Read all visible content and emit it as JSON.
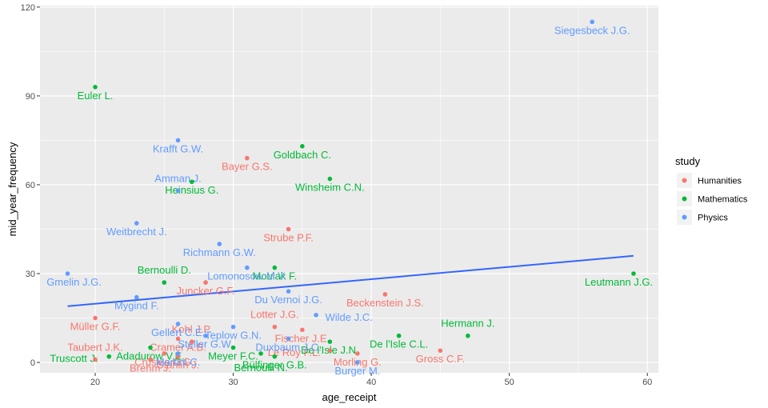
{
  "chart_data": {
    "type": "scatter",
    "xlabel": "age_receipt",
    "ylabel": "mid_year_frequency",
    "xlim": [
      16.0,
      60.8
    ],
    "ylim": [
      -3.5,
      120.5
    ],
    "x_ticks": [
      20,
      30,
      40,
      50,
      60
    ],
    "y_ticks": [
      0,
      30,
      60,
      90,
      120
    ],
    "grid": true,
    "legend": {
      "title": "study",
      "placement": "right",
      "entries": [
        {
          "name": "Humanities",
          "color": "#F8766D"
        },
        {
          "name": "Mathematics",
          "color": "#00BA38"
        },
        {
          "name": "Physics",
          "color": "#619CFF"
        }
      ]
    },
    "trend_line": {
      "color": "#3366FF",
      "from": [
        18,
        19
      ],
      "to": [
        59,
        36
      ]
    },
    "series": [
      {
        "name": "Humanities",
        "color": "#F8766D",
        "points": [
          {
            "x": 31,
            "y": 69,
            "label": "Bayer G.S."
          },
          {
            "x": 34,
            "y": 45,
            "label": "Strube P.F."
          },
          {
            "x": 28,
            "y": 27,
            "label": "Juncker G.F."
          },
          {
            "x": 41,
            "y": 23,
            "label": "Beckenstein J.S."
          },
          {
            "x": 20,
            "y": 15,
            "label": "Müller G.F."
          },
          {
            "x": 35,
            "y": 11,
            "label": "Fischer J.E."
          },
          {
            "x": 33,
            "y": 12,
            "label": "Lotter J.G."
          },
          {
            "x": 26,
            "y": 8,
            "label": "Cramer A.B."
          },
          {
            "x": 27,
            "y": 7,
            "label": "Kohl J.P."
          },
          {
            "x": 25,
            "y": 3,
            "label": "Crusius C.G."
          },
          {
            "x": 39,
            "y": 3,
            "label": "Morling G."
          },
          {
            "x": 45,
            "y": 4,
            "label": "Gross C.F."
          },
          {
            "x": 26,
            "y": 2,
            "label": "Stählin J."
          },
          {
            "x": 24,
            "y": 1,
            "label": "Brehm J."
          },
          {
            "x": 37,
            "y": 4,
            "label": "Le Roy P.L."
          },
          {
            "x": 20,
            "y": 1,
            "label": "Taubert J.K."
          }
        ]
      },
      {
        "name": "Mathematics",
        "color": "#00BA38",
        "points": [
          {
            "x": 20,
            "y": 93,
            "label": "Euler L."
          },
          {
            "x": 35,
            "y": 73,
            "label": "Goldbach C."
          },
          {
            "x": 37,
            "y": 62,
            "label": "Winsheim C.N."
          },
          {
            "x": 27,
            "y": 61,
            "label": "Heinsius G."
          },
          {
            "x": 33,
            "y": 32,
            "label": "Moulak F."
          },
          {
            "x": 25,
            "y": 27,
            "label": "Bernoulli D."
          },
          {
            "x": 59,
            "y": 30,
            "label": "Leutmann J.G."
          },
          {
            "x": 42,
            "y": 9,
            "label": "De l'Isle C.L."
          },
          {
            "x": 37,
            "y": 7,
            "label": "De l'Isle J.N."
          },
          {
            "x": 47,
            "y": 9,
            "label": "Hermann J."
          },
          {
            "x": 24,
            "y": 5,
            "label": "Adadurow V.E."
          },
          {
            "x": 30,
            "y": 5,
            "label": "Meyer F.C."
          },
          {
            "x": 32,
            "y": 3,
            "label": "Bernoulli N."
          },
          {
            "x": 33,
            "y": 2,
            "label": "Bülfinger G.B."
          },
          {
            "x": 21,
            "y": 2,
            "label": "Truscott J."
          }
        ]
      },
      {
        "name": "Physics",
        "color": "#619CFF",
        "points": [
          {
            "x": 56,
            "y": 115,
            "label": "Siegesbeck J.G."
          },
          {
            "x": 26,
            "y": 75,
            "label": "Krafft G.W."
          },
          {
            "x": 26,
            "y": 58,
            "label": "Amman J."
          },
          {
            "x": 23,
            "y": 47,
            "label": "Weitbrecht J."
          },
          {
            "x": 29,
            "y": 40,
            "label": "Richmann G.W."
          },
          {
            "x": 31,
            "y": 32,
            "label": "Lomonosow M.V."
          },
          {
            "x": 18,
            "y": 30,
            "label": "Gmelin J.G."
          },
          {
            "x": 34,
            "y": 24,
            "label": "Du Vernoi J.G."
          },
          {
            "x": 23,
            "y": 22,
            "label": "Mygind F."
          },
          {
            "x": 36,
            "y": 16,
            "label": "Wilde J.C."
          },
          {
            "x": 26,
            "y": 13,
            "label": "Gellert C.E."
          },
          {
            "x": 30,
            "y": 12,
            "label": "Teplow G.N."
          },
          {
            "x": 28,
            "y": 9,
            "label": "Steller G.W."
          },
          {
            "x": 34,
            "y": 8,
            "label": "Duxbaum J.C."
          },
          {
            "x": 26,
            "y": 3,
            "label": "Martini C."
          },
          {
            "x": 39,
            "y": 0,
            "label": "Burger M."
          }
        ]
      }
    ]
  }
}
